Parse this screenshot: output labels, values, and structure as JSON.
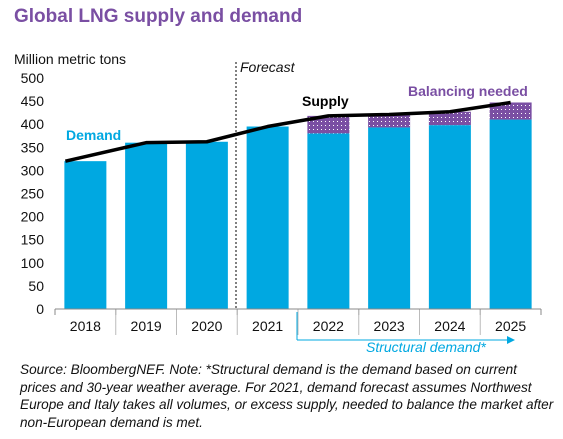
{
  "chart_data": {
    "type": "bar",
    "title": "Global LNG supply and demand",
    "ylabel": "Million metric tons",
    "ylim": [
      0,
      500
    ],
    "yticks": [
      0,
      50,
      100,
      150,
      200,
      250,
      300,
      350,
      400,
      450,
      500
    ],
    "categories": [
      "2018",
      "2019",
      "2020",
      "2021",
      "2022",
      "2023",
      "2024",
      "2025"
    ],
    "series": [
      {
        "name": "Demand",
        "kind": "bar",
        "color": "#00a8e1",
        "values": [
          320,
          360,
          362,
          395,
          380,
          393,
          398,
          410
        ]
      },
      {
        "name": "Balancing needed",
        "kind": "stacked-bar",
        "color": "#7a4fa3",
        "pattern": "dotted",
        "values": [
          0,
          0,
          0,
          0,
          38,
          28,
          29,
          37
        ]
      },
      {
        "name": "Supply",
        "kind": "line",
        "color": "#000000",
        "values": [
          320,
          360,
          362,
          395,
          418,
          421,
          427,
          447
        ]
      }
    ],
    "annotations": {
      "forecast": "Forecast",
      "structural_demand": "Structural demand*"
    },
    "grid": false,
    "legend": "inline labels"
  },
  "source_note": "Source: BloombergNEF. Note: *Structural demand is the demand based on current prices and 30-year weather average. For 2021, demand forecast assumes Northwest Europe and Italy takes all volumes, or excess supply, needed to balance the market after non-European demand is met."
}
